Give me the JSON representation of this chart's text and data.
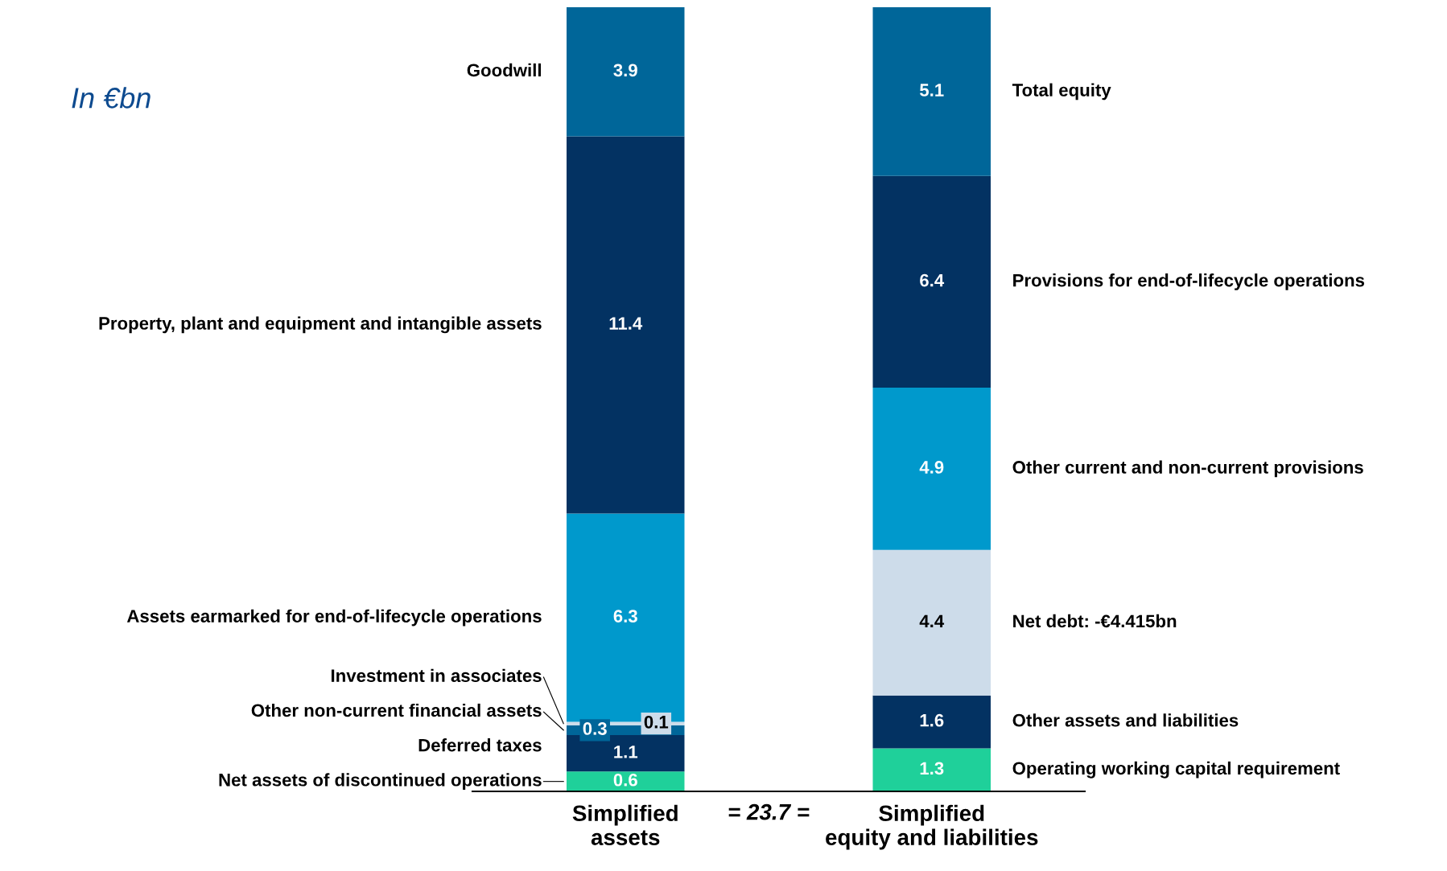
{
  "chart_data": {
    "type": "bar",
    "stacked": true,
    "data_labels": true,
    "legend": false,
    "grid": false,
    "tick_labels": "x",
    "categories": [
      "Simplified\nassets",
      "Simplified\nequity and liabilities"
    ],
    "annotations": [
      "In €bn",
      "= 23.7 ="
    ],
    "series": [
      {
        "name": "Net assets of discontinued operations",
        "color": "#1fd09a",
        "values": [
          0.6,
          null
        ]
      },
      {
        "name": "Deferred taxes",
        "color": "#033262",
        "values": [
          1.1,
          null
        ]
      },
      {
        "name": "Other non-current financial assets",
        "color": "#006699",
        "values": [
          0.3,
          null
        ]
      },
      {
        "name": "Investment in associates",
        "color": "#cddcea",
        "values": [
          0.1,
          null
        ]
      },
      {
        "name": "Assets earmarked for end-of-lifecycle operations",
        "color": "#0099cc",
        "values": [
          6.3,
          null
        ]
      },
      {
        "name": "Property, plant and equipment and intangible assets",
        "color": "#033262",
        "values": [
          11.4,
          null
        ]
      },
      {
        "name": "Goodwill",
        "color": "#006699",
        "values": [
          3.9,
          null
        ]
      },
      {
        "name": "Operating working capital requirement",
        "color": "#1fd09a",
        "values": [
          null,
          1.3
        ]
      },
      {
        "name": "Other assets and liabilities",
        "color": "#033262",
        "values": [
          null,
          1.6
        ]
      },
      {
        "name": "Net debt: -€4.415bn",
        "color": "#cddcea",
        "values": [
          null,
          4.4
        ]
      },
      {
        "name": "Other current and non-current provisions",
        "color": "#0099cc",
        "values": [
          null,
          4.9
        ]
      },
      {
        "name": "Provisions for end-of-lifecycle operations",
        "color": "#033262",
        "values": [
          null,
          6.4
        ]
      },
      {
        "name": "Total equity",
        "color": "#006699",
        "values": [
          null,
          5.1
        ]
      }
    ]
  }
}
